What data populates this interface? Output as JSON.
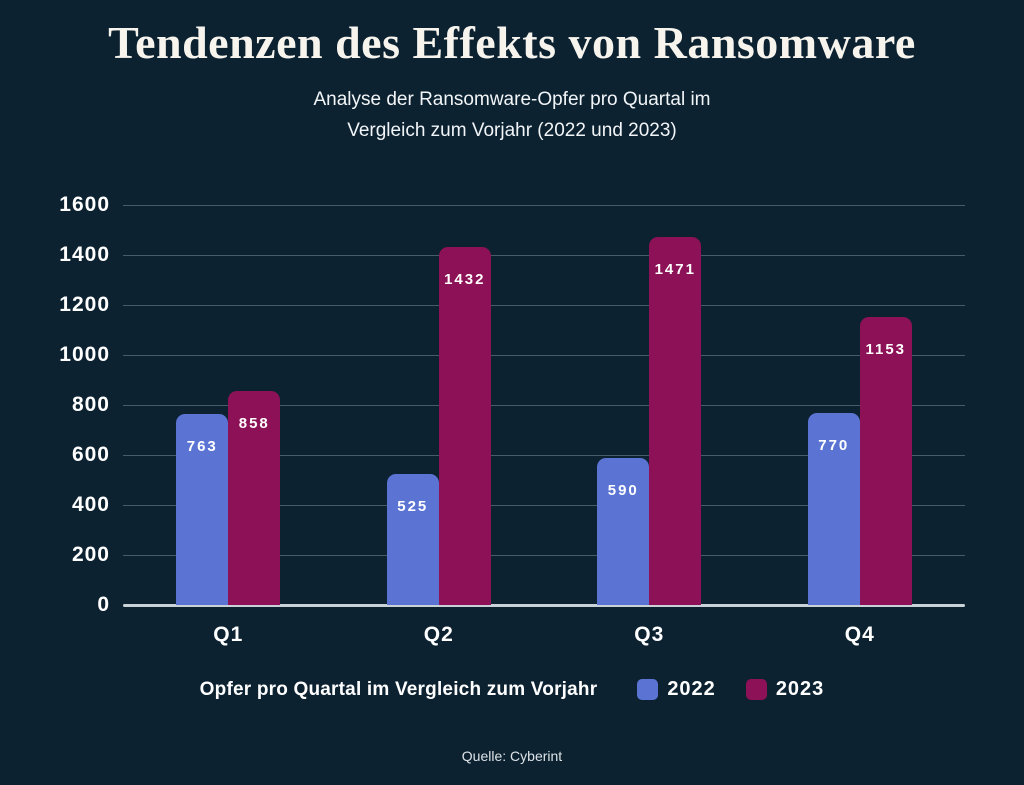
{
  "title": "Tendenzen des Effekts von Ransomware",
  "subtitle": {
    "line1": "Analyse der Ransomware-Opfer pro Quartal im",
    "line2": "Vergleich zum Vorjahr (2022 und 2023)"
  },
  "legend": {
    "label": "Opfer pro Quartal im Vergleich zum Vorjahr",
    "items": [
      {
        "name": "2022",
        "color": "#5b74d4"
      },
      {
        "name": "2023",
        "color": "#8d1156"
      }
    ]
  },
  "source": "Quelle: Cyberint",
  "colors": {
    "background": "#0c2231",
    "series_2022": "#5b74d4",
    "series_2023": "#8d1156",
    "gridline": "rgba(197,212,222,0.32)",
    "axis_line": "#c9d2d8",
    "text": "#ffffff",
    "title_text": "#f7f4ee"
  },
  "chart_data": {
    "type": "bar",
    "categories": [
      "Q1",
      "Q2",
      "Q3",
      "Q4"
    ],
    "series": [
      {
        "name": "2022",
        "color": "#5b74d4",
        "values": [
          763,
          525,
          590,
          770
        ]
      },
      {
        "name": "2023",
        "color": "#8d1156",
        "values": [
          858,
          1432,
          1471,
          1153
        ]
      }
    ],
    "title": "Tendenzen des Effekts von Ransomware",
    "subtitle": "Analyse der Ransomware-Opfer pro Quartal im Vergleich zum Vorjahr (2022 und 2023)",
    "xlabel": "",
    "ylabel": "",
    "ylim": [
      0,
      1600
    ],
    "yticks": [
      0,
      200,
      400,
      600,
      800,
      1000,
      1200,
      1400,
      1600
    ],
    "grid": true,
    "value_labels": true,
    "legend_position": "bottom",
    "source": "Quelle: Cyberint"
  }
}
